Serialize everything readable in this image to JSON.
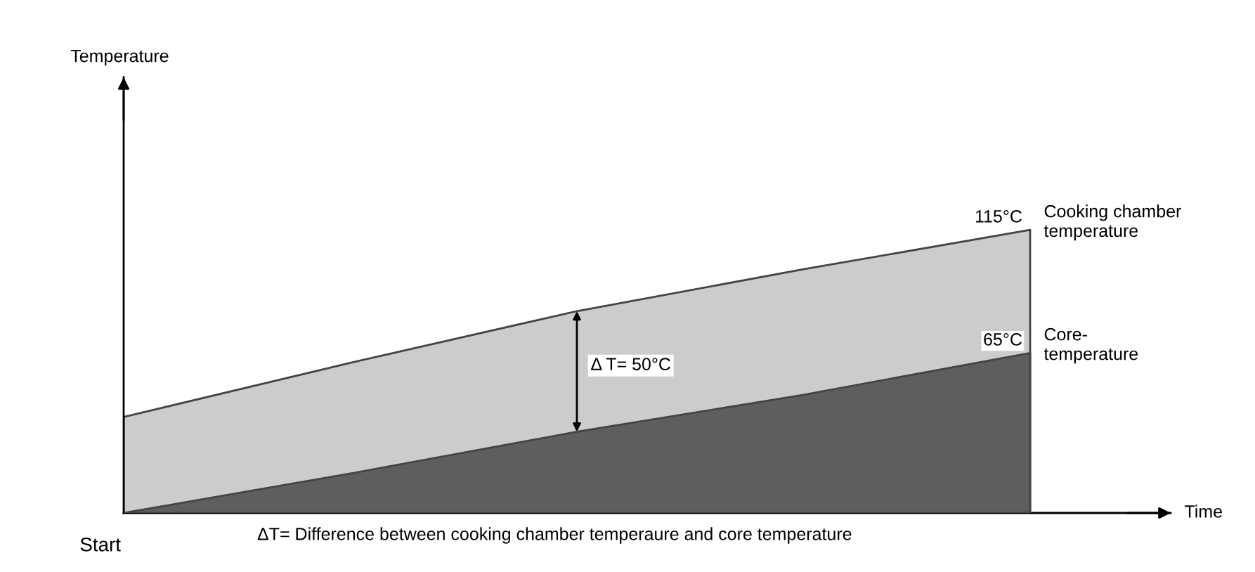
{
  "chart_data": {
    "type": "area",
    "ylabel": "Temperature",
    "xlabel": "Time",
    "ylim": [
      0,
      177
    ],
    "annotations": [
      "Δ T= 50°C",
      "Start",
      "ΔT= Difference between cooking chamber temperaure and core temperature"
    ],
    "categories": [
      null,
      null,
      null,
      null,
      null
    ],
    "series": [
      {
        "name": "Cooking chamber\ntemperature",
        "color": "#cccccc",
        "values": [
          39,
          61,
          82,
          99,
          115
        ],
        "value_labels": [
          null,
          null,
          null,
          null,
          "115°C"
        ]
      },
      {
        "name": "Core-\ntemperature",
        "color": "#5e5e5e",
        "values": [
          0,
          16,
          33,
          48,
          65
        ],
        "value_labels": [
          null,
          null,
          null,
          null,
          "65°C"
        ]
      }
    ]
  }
}
